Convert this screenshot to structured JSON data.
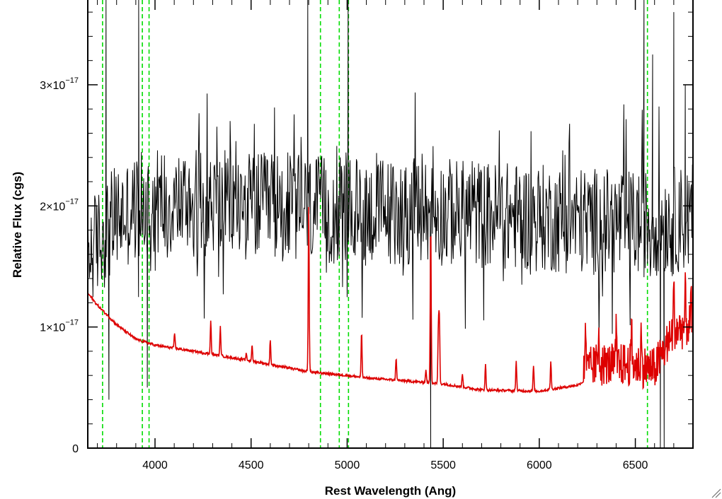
{
  "chart_data": {
    "type": "line",
    "title": "",
    "xlabel": "Rest Wavelength (Ang)",
    "ylabel": "Relative Flux (cgs)",
    "xlim": [
      3650,
      6800
    ],
    "ylim": [
      0,
      3.7e-17
    ],
    "x_ticks": [
      4000,
      4500,
      5000,
      5500,
      6000,
      6500
    ],
    "x_tick_labels": [
      "4000",
      "4500",
      "5000",
      "5500",
      "6000",
      "6500"
    ],
    "y_ticks": [
      {
        "value": 0,
        "mantissa": "0",
        "exponent": ""
      },
      {
        "value": 1e-17,
        "mantissa": "1×10",
        "exponent": "−17"
      },
      {
        "value": 2e-17,
        "mantissa": "2×10",
        "exponent": "−17"
      },
      {
        "value": 3e-17,
        "mantissa": "3×10",
        "exponent": "−17"
      }
    ],
    "grid": false,
    "line_markers": [
      3727,
      3934,
      3969,
      4861,
      4959,
      5007,
      6563
    ],
    "series": [
      {
        "name": "",
        "color": "#000000",
        "kind": "noisy-spectrum",
        "baseline_points": [
          [
            3650,
            1.6e-17
          ],
          [
            3800,
            1.9e-17
          ],
          [
            4000,
            2.05e-17
          ],
          [
            4500,
            2e-17
          ],
          [
            5000,
            1.95e-17
          ],
          [
            5500,
            1.95e-17
          ],
          [
            6000,
            1.9e-17
          ],
          [
            6500,
            1.85e-17
          ],
          [
            6800,
            1.9e-17
          ]
        ],
        "noise_amplitude": 4.5e-18,
        "spikes": [
          [
            3745,
            3.7e-17
          ],
          [
            3760,
            4e-18
          ],
          [
            3915,
            3.7e-17
          ],
          [
            3960,
            5e-18
          ],
          [
            4795,
            3.7e-17
          ],
          [
            5005,
            3.7e-17
          ],
          [
            5435,
            0.0
          ],
          [
            6545,
            3.7e-17
          ],
          [
            6590,
            3.25e-17
          ],
          [
            6630,
            0.0
          ],
          [
            6650,
            0.0
          ],
          [
            6700,
            3.6e-17
          ],
          [
            6760,
            3e-17
          ]
        ]
      },
      {
        "name": "",
        "color": "#dd0000",
        "kind": "model-spectrum",
        "continuum_points": [
          [
            3650,
            1.28e-17
          ],
          [
            3700,
            1.18e-17
          ],
          [
            3800,
            1.02e-17
          ],
          [
            3900,
            9e-18
          ],
          [
            4000,
            8.5e-18
          ],
          [
            4200,
            8e-18
          ],
          [
            4500,
            7.2e-18
          ],
          [
            4800,
            6.3e-18
          ],
          [
            5000,
            6e-18
          ],
          [
            5100,
            5.8e-18
          ],
          [
            5500,
            5.3e-18
          ],
          [
            5700,
            4.8e-18
          ],
          [
            6000,
            4.7e-18
          ],
          [
            6200,
            5.2e-18
          ],
          [
            6300,
            6.2e-18
          ],
          [
            6500,
            6.2e-18
          ],
          [
            6600,
            5.8e-18
          ],
          [
            6700,
            9e-18
          ],
          [
            6800,
            9.5e-18
          ]
        ],
        "emission_lines": [
          [
            4102,
            9.5e-18
          ],
          [
            4290,
            1.05e-17
          ],
          [
            4340,
            1e-17
          ],
          [
            4475,
            7.8e-18
          ],
          [
            4505,
            8.5e-18
          ],
          [
            4600,
            9e-18
          ],
          [
            4800,
            2e-17
          ],
          [
            5075,
            9.5e-18
          ],
          [
            5255,
            7.5e-18
          ],
          [
            5410,
            6.5e-18
          ],
          [
            5435,
            1.85e-17
          ],
          [
            5475,
            1e-17
          ],
          [
            5480,
            1.05e-17
          ],
          [
            5600,
            6.2e-18
          ],
          [
            5720,
            7e-18
          ],
          [
            5880,
            7.2e-18
          ],
          [
            5970,
            6.8e-18
          ],
          [
            6060,
            7.2e-18
          ],
          [
            6240,
            1e-17
          ],
          [
            6310,
            9.5e-18
          ],
          [
            6400,
            8.8e-18
          ],
          [
            6480,
            9e-18
          ],
          [
            6530,
            8.5e-18
          ],
          [
            6700,
            1.25e-17
          ],
          [
            6760,
            1.2e-17
          ],
          [
            6790,
            1.15e-17
          ]
        ]
      }
    ]
  }
}
